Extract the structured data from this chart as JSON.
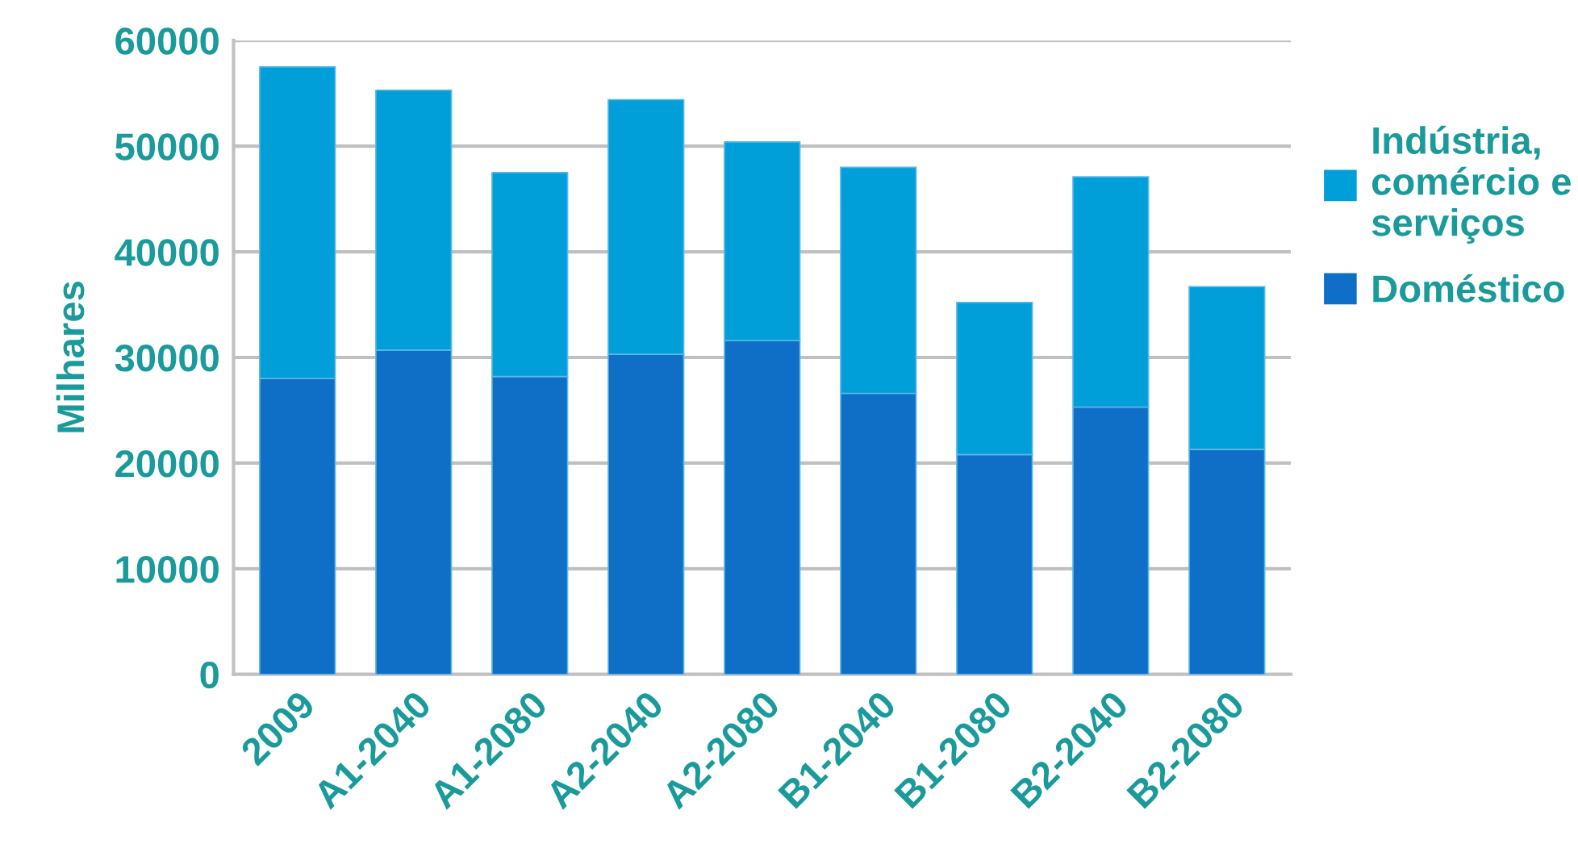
{
  "chart_data": {
    "type": "bar",
    "ylabel": "Milhares",
    "stacked": true,
    "categories": [
      "2009",
      "A1-2040",
      "A1-2080",
      "A2-2040",
      "A2-2080",
      "B1-2040",
      "B1-2080",
      "B2-2040",
      "B2-2080"
    ],
    "series": [
      {
        "name": "Doméstico",
        "color": "#0f6fc6",
        "values": [
          28000,
          30700,
          28200,
          30300,
          31600,
          26600,
          20800,
          25300,
          21300
        ]
      },
      {
        "name": "Indústria,\ncomércio e\nserviços",
        "color": "#009fda",
        "values": [
          29500,
          24600,
          19300,
          24100,
          18800,
          21400,
          14400,
          21800,
          15400
        ]
      }
    ],
    "ylim": [
      0,
      60000
    ],
    "yticks": [
      0,
      10000,
      20000,
      30000,
      40000,
      50000,
      60000
    ],
    "grid": "y",
    "legend": "right"
  }
}
